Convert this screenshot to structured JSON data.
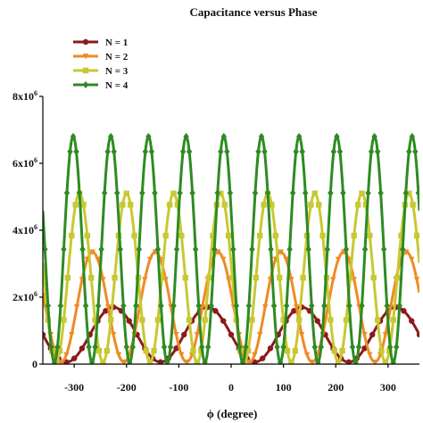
{
  "chart_data": {
    "type": "line",
    "title": "Capacitance versus Phase",
    "xlabel": "ϕ (degree)",
    "ylabel": "",
    "xlim": [
      -360,
      360
    ],
    "ylim": [
      0,
      8000000
    ],
    "x_ticks": [
      -300,
      -200,
      -100,
      0,
      100,
      200,
      300
    ],
    "x_tick_labels": [
      "-300",
      "-200",
      "-100",
      "0",
      "100",
      "200",
      "300"
    ],
    "y_ticks": [
      0,
      2000000,
      4000000,
      6000000,
      8000000
    ],
    "y_tick_labels": [
      {
        "base": "0",
        "exp": ""
      },
      {
        "base": "2x10",
        "exp": "6"
      },
      {
        "base": "4x10",
        "exp": "6"
      },
      {
        "base": "6x10",
        "exp": "6"
      },
      {
        "base": "8x10",
        "exp": "6"
      }
    ],
    "grid": false,
    "legend_position": "top-left",
    "series": [
      {
        "name": "N = 1",
        "color": "#8b1a1a",
        "marker": "circle",
        "period": 180,
        "peak_phase": -225,
        "max": 1700000,
        "min": 60000
      },
      {
        "name": "N = 2",
        "color": "#f08a24",
        "marker": "triangle-down",
        "period": 120,
        "peak_phase": -265,
        "max": 3350000,
        "min": 60000
      },
      {
        "name": "N = 3",
        "color": "#c8c832",
        "marker": "square",
        "period": 90,
        "peak_phase": -290,
        "max": 5100000,
        "min": 60000
      },
      {
        "name": "N = 4",
        "color": "#2e8b22",
        "marker": "diamond",
        "period": 72,
        "peak_phase": -302,
        "max": 6800000,
        "min": 60000
      }
    ]
  }
}
